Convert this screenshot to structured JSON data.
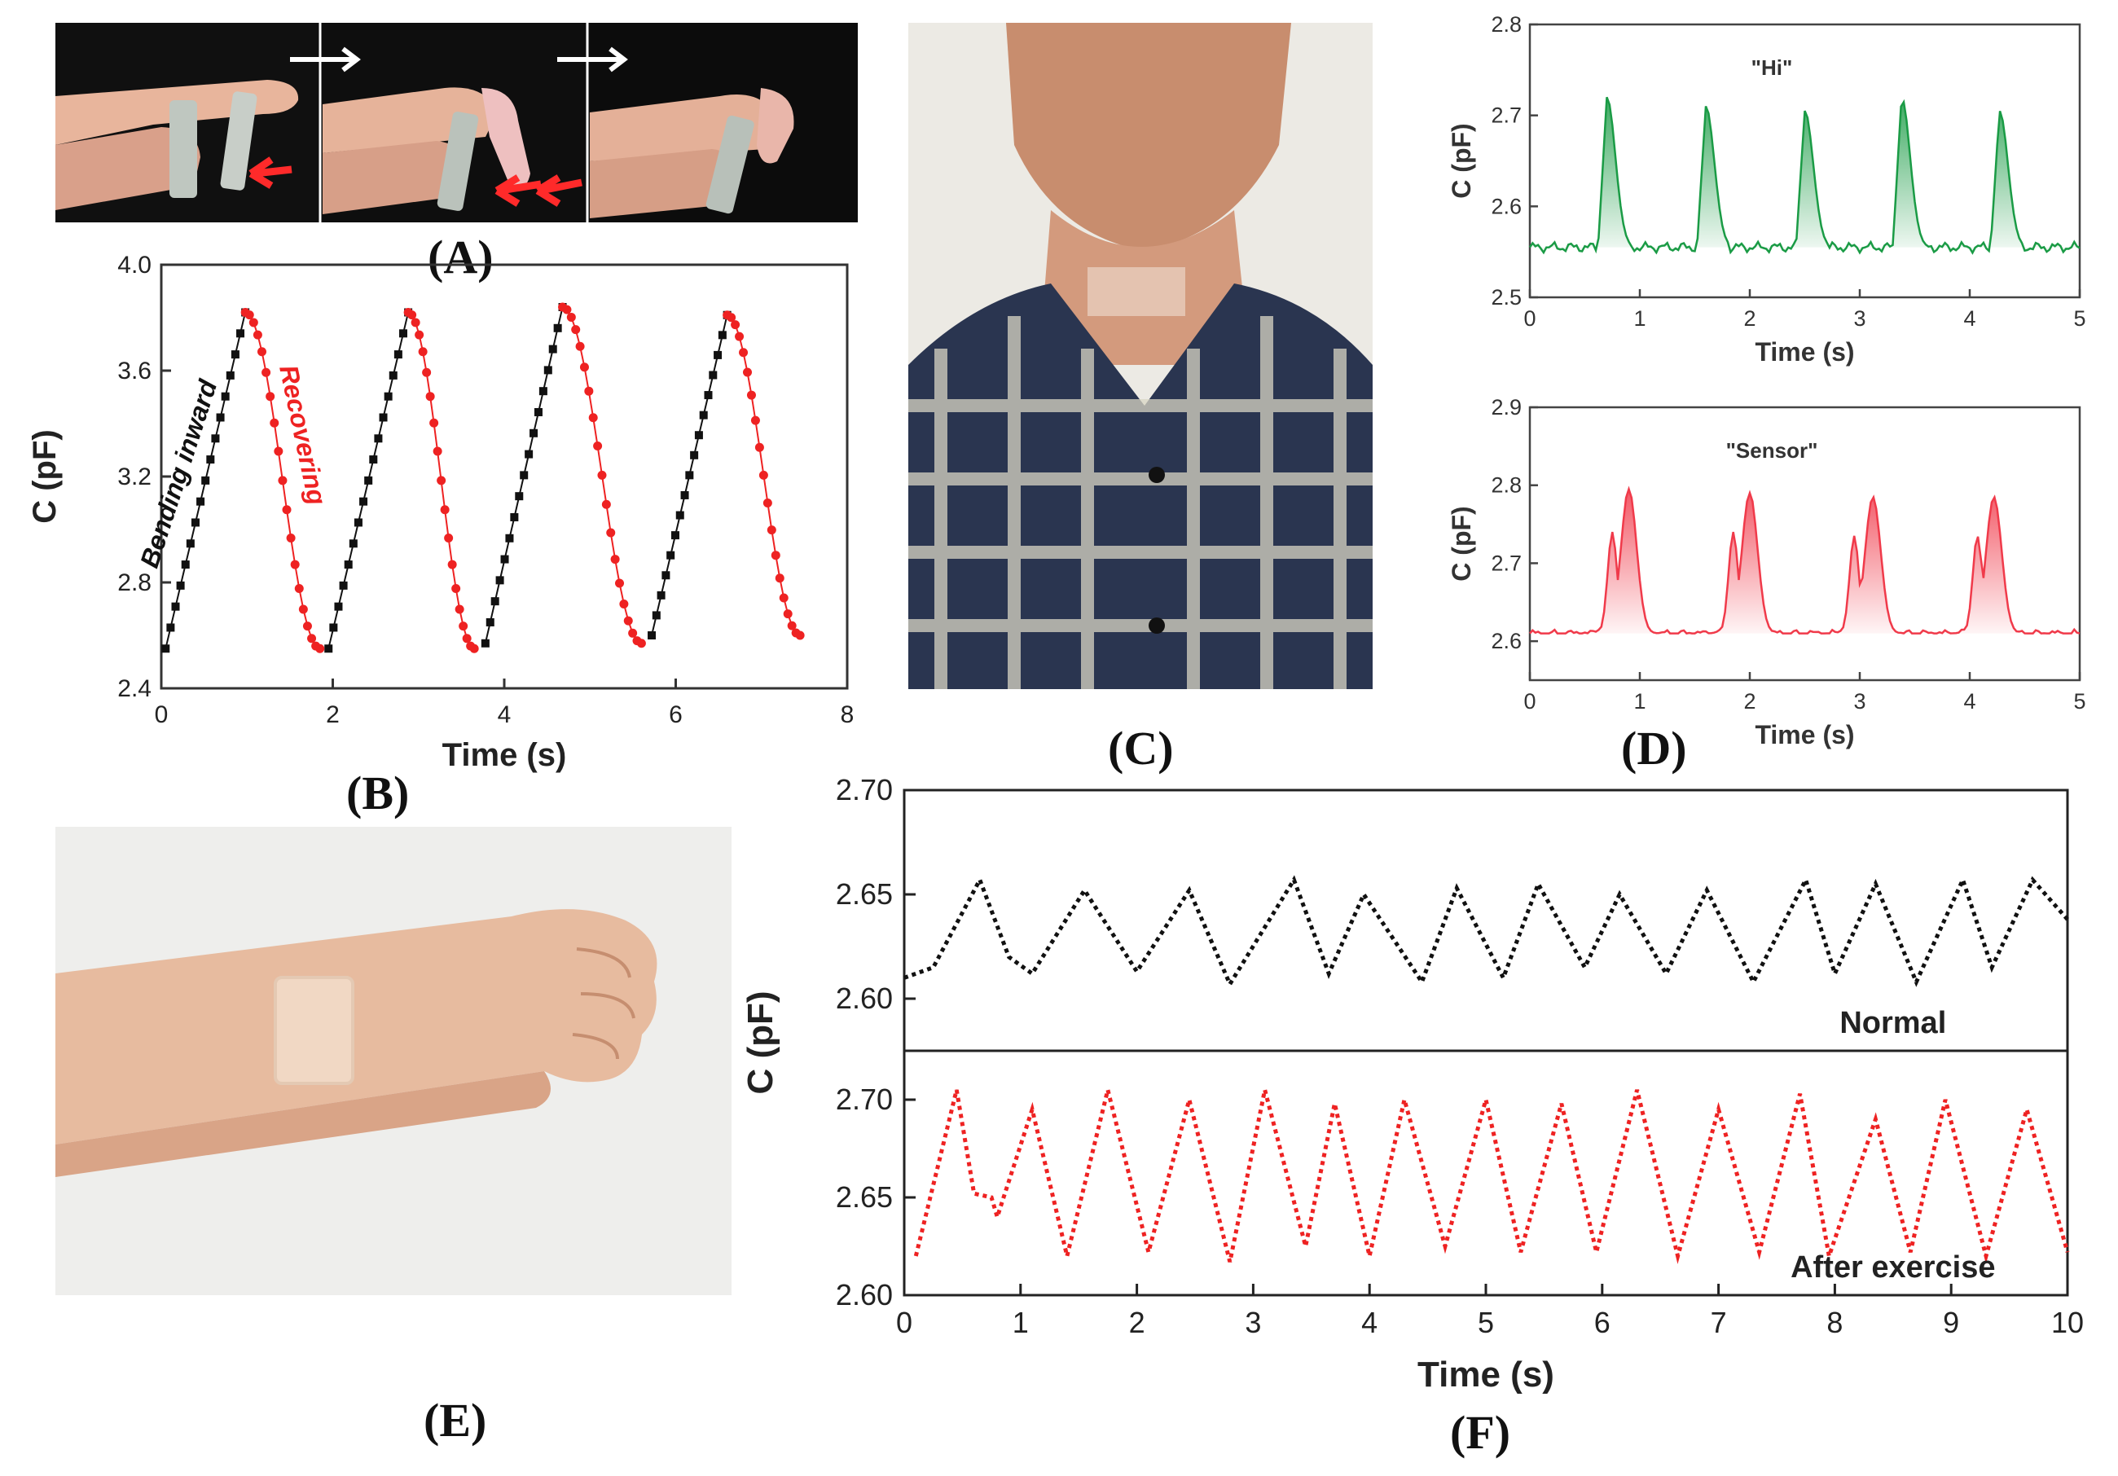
{
  "panels": {
    "A": "(A)",
    "B": "(B)",
    "C": "(C)",
    "D": "(D)",
    "E": "(E)",
    "F": "(F)"
  },
  "colors": {
    "black_series": "#111111",
    "red_series": "#ee2222",
    "green_series": "#1a9b45",
    "pink_series": "#f03a4a"
  },
  "chart_data": [
    {
      "id": "B",
      "type": "scatter",
      "xlabel": "Time (s)",
      "ylabel": "C (pF)",
      "xlim": [
        0,
        8
      ],
      "ylim": [
        2.4,
        4.0
      ],
      "xticks": [
        0,
        2,
        4,
        6,
        8
      ],
      "yticks": [
        2.4,
        2.8,
        3.2,
        3.6,
        4.0
      ],
      "yticklabels": [
        "2.4",
        "2.8",
        "3.2",
        "3.6",
        "4.0"
      ],
      "annotations": [
        "Bending inward",
        "Recovering"
      ],
      "cycles": [
        {
          "start": 0.05,
          "peak": 0.98,
          "recover_end": 1.85,
          "min_end": 2.55
        },
        {
          "start": 1.95,
          "peak": 2.88,
          "recover_end": 3.65,
          "min_end": 2.57
        },
        {
          "start": 3.78,
          "peak": 4.68,
          "recover_end": 5.6,
          "min_end": 2.6
        },
        {
          "start": 5.72,
          "peak": 6.6,
          "recover_end": 7.45,
          "min_end": 2.56
        }
      ],
      "cycle_peak_values": [
        3.82,
        3.82,
        3.84,
        3.81
      ],
      "cycle_min_values": [
        2.55,
        2.55,
        2.57,
        2.6
      ],
      "series": [
        {
          "name": "Bending inward",
          "color": "#111111"
        },
        {
          "name": "Recovering",
          "color": "#ee2222"
        }
      ]
    },
    {
      "id": "D1",
      "type": "area",
      "title": "\"Hi\"",
      "xlabel": "Time (s)",
      "ylabel": "C (pF)",
      "xlim": [
        0,
        5
      ],
      "ylim": [
        2.5,
        2.8
      ],
      "xticks": [
        0,
        1,
        2,
        3,
        4,
        5
      ],
      "yticks": [
        2.5,
        2.6,
        2.7,
        2.8
      ],
      "yticklabels": [
        "2.5",
        "2.6",
        "2.7",
        "2.8"
      ],
      "baseline": 2.555,
      "peaks": [
        {
          "t": 0.7,
          "value": 2.72
        },
        {
          "t": 1.6,
          "value": 2.71
        },
        {
          "t": 2.5,
          "value": 2.705
        },
        {
          "t": 3.38,
          "value": 2.72
        },
        {
          "t": 4.27,
          "value": 2.705
        }
      ]
    },
    {
      "id": "D2",
      "type": "area",
      "title": "\"Sensor\"",
      "xlabel": "Time (s)",
      "ylabel": "C (pF)",
      "xlim": [
        0,
        5
      ],
      "ylim": [
        2.55,
        2.9
      ],
      "xticks": [
        0,
        1,
        2,
        3,
        4,
        5
      ],
      "yticks": [
        2.6,
        2.7,
        2.8,
        2.9
      ],
      "yticklabels": [
        "2.6",
        "2.7",
        "2.8",
        "2.9"
      ],
      "baseline": 2.61,
      "peaks": [
        {
          "t1": 0.75,
          "v1": 2.74,
          "t2": 0.9,
          "v2": 2.795
        },
        {
          "t1": 1.85,
          "v1": 2.74,
          "t2": 2.0,
          "v2": 2.79
        },
        {
          "t1": 2.95,
          "v1": 2.735,
          "t2": 3.12,
          "v2": 2.785
        },
        {
          "t1": 4.07,
          "v1": 2.735,
          "t2": 4.22,
          "v2": 2.785
        }
      ]
    },
    {
      "id": "F",
      "type": "line",
      "xlabel": "Time (s)",
      "ylabel": "C (pF)",
      "xlim": [
        0,
        10
      ],
      "xticks": [
        0,
        1,
        2,
        3,
        4,
        5,
        6,
        7,
        8,
        9,
        10
      ],
      "top": {
        "name": "Normal",
        "ylim": [
          2.575,
          2.7
        ],
        "yticks": [
          2.6,
          2.65,
          2.7
        ],
        "yticklabels": [
          "2.60",
          "2.65",
          "2.70"
        ],
        "x": [
          0.0,
          0.25,
          0.65,
          0.9,
          1.1,
          1.55,
          2.0,
          2.45,
          2.8,
          3.35,
          3.65,
          3.95,
          4.45,
          4.75,
          5.15,
          5.45,
          5.85,
          6.15,
          6.55,
          6.9,
          7.3,
          7.75,
          8.0,
          8.35,
          8.7,
          9.1,
          9.35,
          9.7,
          10.0
        ],
        "values": [
          2.61,
          2.615,
          2.657,
          2.62,
          2.612,
          2.652,
          2.613,
          2.652,
          2.607,
          2.657,
          2.612,
          2.65,
          2.608,
          2.653,
          2.61,
          2.655,
          2.615,
          2.65,
          2.612,
          2.652,
          2.608,
          2.657,
          2.612,
          2.655,
          2.608,
          2.657,
          2.615,
          2.657,
          2.638
        ]
      },
      "bottom": {
        "name": "After exercise",
        "ylim": [
          2.6,
          2.725
        ],
        "yticks": [
          2.6,
          2.65,
          2.7
        ],
        "yticklabels": [
          "2.60",
          "2.65",
          "2.70"
        ],
        "x": [
          0.1,
          0.45,
          0.6,
          0.75,
          0.8,
          1.1,
          1.4,
          1.75,
          2.1,
          2.45,
          2.8,
          3.1,
          3.45,
          3.7,
          4.0,
          4.3,
          4.65,
          5.0,
          5.3,
          5.65,
          5.95,
          6.3,
          6.65,
          7.0,
          7.35,
          7.7,
          7.95,
          8.35,
          8.65,
          8.95,
          9.3,
          9.65,
          10.0
        ],
        "values": [
          2.62,
          2.705,
          2.652,
          2.65,
          2.64,
          2.695,
          2.62,
          2.705,
          2.622,
          2.7,
          2.617,
          2.705,
          2.625,
          2.698,
          2.62,
          2.7,
          2.625,
          2.7,
          2.622,
          2.698,
          2.622,
          2.705,
          2.62,
          2.695,
          2.622,
          2.703,
          2.62,
          2.69,
          2.622,
          2.7,
          2.62,
          2.695,
          2.622
        ]
      }
    }
  ]
}
